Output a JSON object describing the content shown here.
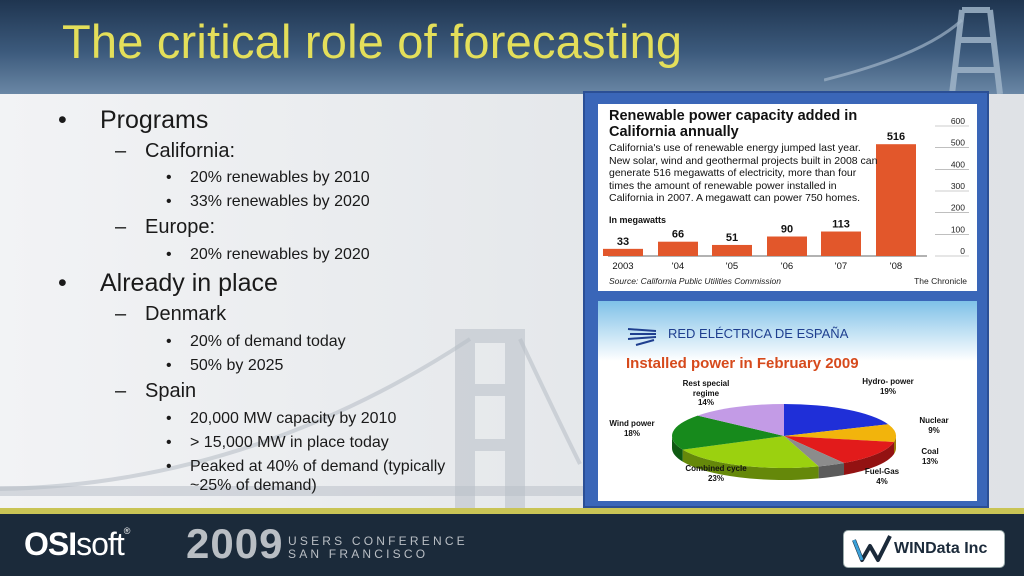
{
  "slide": {
    "title": "The critical role of forecasting"
  },
  "bullets": {
    "programs": "Programs",
    "california": "California:",
    "ca_item1": "20% renewables by 2010",
    "ca_item2": "33% renewables by 2020",
    "europe": "Europe:",
    "eu_item1": "20% renewables by 2020",
    "already": "Already in place",
    "denmark": "Denmark",
    "dk_item1": "20% of demand today",
    "dk_item2": "50% by 2025",
    "spain": "Spain",
    "es_item1": "20,000 MW capacity by 2010",
    "es_item2": "> 15,000 MW in place today",
    "es_item3_line1": "Peaked at 40% of demand (typically",
    "es_item3_line2": "~25% of demand)"
  },
  "chart_data": [
    {
      "type": "bar",
      "title": "Renewable power capacity added in California annually",
      "description": "California's use of renewable energy jumped last year. New solar, wind and geothermal projects built in 2008 can generate 516 megawatts of electricity, more than four times the amount of renewable power installed in California in 2007. A megawatt can power 750 homes.",
      "unit_label": "In megawatts",
      "categories": [
        "2003",
        "'04",
        "'05",
        "'06",
        "'07",
        "'08"
      ],
      "values": [
        33,
        66,
        51,
        90,
        113,
        516
      ],
      "yticks": [
        0,
        100,
        200,
        300,
        400,
        500,
        600
      ],
      "ylim": [
        0,
        600
      ],
      "source": "Source: California Public Utilities Commission",
      "credit": "The Chronicle",
      "bar_color": "#e2572b"
    },
    {
      "type": "pie",
      "brand": "RED ELÉCTRICA DE ESPAÑA",
      "title": "Installed power in February 2009",
      "slices": [
        {
          "label": "Hydro-power",
          "label_text": "Hydro- power",
          "value": 19,
          "value_text": "19%",
          "color": "#1f2fd8"
        },
        {
          "label": "Nuclear",
          "label_text": "Nuclear",
          "value": 9,
          "value_text": "9%",
          "color": "#f2b40c"
        },
        {
          "label": "Coal",
          "label_text": "Coal",
          "value": 13,
          "value_text": "13%",
          "color": "#e21b1b"
        },
        {
          "label": "Fuel-Gas",
          "label_text": "Fuel-Gas",
          "value": 4,
          "value_text": "4%",
          "color": "#8c8c8c"
        },
        {
          "label": "Combined cycle",
          "label_text": "Combined cycle",
          "value": 23,
          "value_text": "23%",
          "color": "#9bd10f"
        },
        {
          "label": "Wind power",
          "label_text": "Wind power",
          "value": 18,
          "value_text": "18%",
          "color": "#178a1c"
        },
        {
          "label": "Rest special regime",
          "label_text": "Rest special regime",
          "value": 14,
          "value_text": "14%",
          "color": "#c39be6"
        }
      ]
    }
  ],
  "footer": {
    "osi_bold": "OSI",
    "osi_rest": "soft",
    "osi_reg": "®",
    "year": "2009",
    "conf_line1": "USERS CONFERENCE",
    "conf_line2": "SAN FRANCISCO",
    "windata": "WINData Inc"
  }
}
